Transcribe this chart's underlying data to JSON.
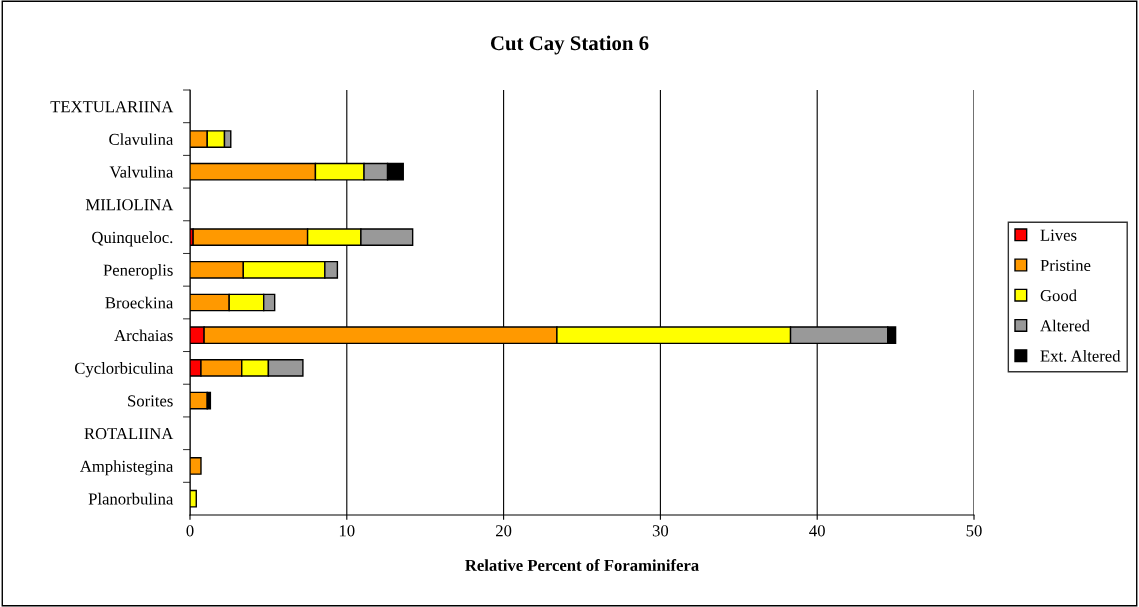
{
  "chart_data": {
    "type": "bar",
    "orientation": "horizontal",
    "stacked": true,
    "title": "Cut Cay Station 6",
    "xlabel": "Relative Percent of Foraminifera",
    "categories": [
      "TEXTULARIINA",
      "Clavulina",
      "Valvulina",
      "MILIOLINA",
      "Quinqueloc.",
      "Peneroplis",
      "Broeckina",
      "Archaias",
      "Cyclorbiculina",
      "Sorites",
      "ROTALIINA",
      "Amphistegina",
      "Planorbulina"
    ],
    "series": [
      {
        "name": "Lives",
        "color": "#ff0000",
        "values": [
          null,
          null,
          null,
          null,
          0.2,
          null,
          null,
          0.9,
          0.7,
          null,
          null,
          null,
          null
        ]
      },
      {
        "name": "Pristine",
        "color": "#ff9900",
        "values": [
          null,
          1.1,
          8.0,
          null,
          7.3,
          3.4,
          2.5,
          22.5,
          2.6,
          1.1,
          null,
          0.7,
          null
        ]
      },
      {
        "name": "Good",
        "color": "#ffff00",
        "values": [
          null,
          1.1,
          3.1,
          null,
          3.4,
          5.2,
          2.2,
          14.9,
          1.7,
          null,
          null,
          null,
          0.4
        ]
      },
      {
        "name": "Altered",
        "color": "#999999",
        "values": [
          null,
          0.4,
          1.5,
          null,
          3.3,
          0.8,
          0.7,
          6.2,
          2.2,
          null,
          null,
          null,
          null
        ]
      },
      {
        "name": "Ext. Altered",
        "color": "#000000",
        "values": [
          null,
          null,
          1.0,
          null,
          null,
          null,
          null,
          0.5,
          null,
          0.2,
          null,
          null,
          null
        ]
      }
    ],
    "xlim": [
      0,
      50
    ],
    "xticks": [
      0,
      10,
      20,
      30,
      40,
      50
    ],
    "grid": "x",
    "legend": "right"
  }
}
